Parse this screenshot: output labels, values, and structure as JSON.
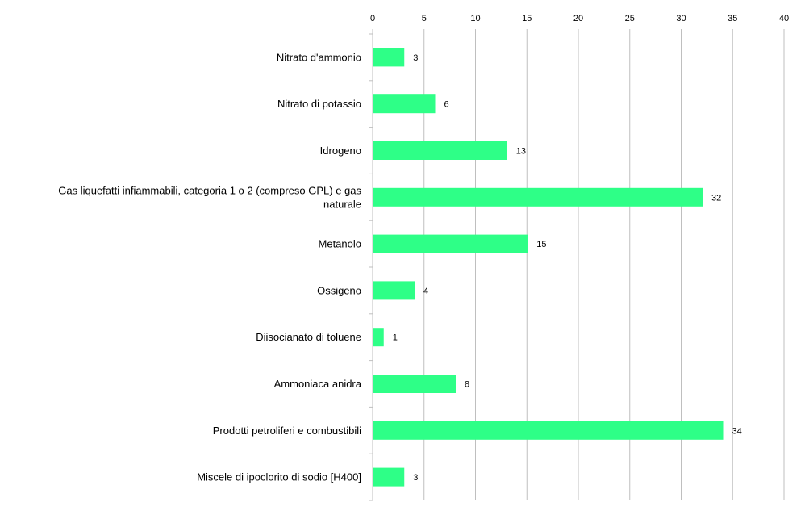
{
  "chart_data": {
    "type": "bar",
    "orientation": "horizontal",
    "title": "",
    "xlabel": "",
    "ylabel": "",
    "xlim": [
      0,
      40
    ],
    "xticks": [
      0,
      5,
      10,
      15,
      20,
      25,
      30,
      35,
      40
    ],
    "x_axis_position": "top",
    "grid": "vertical",
    "legend": "none",
    "bar_color": "#2EFF87",
    "categories": [
      [
        "Nitrato d'ammonio"
      ],
      [
        "Nitrato di potassio"
      ],
      [
        "Idrogeno"
      ],
      [
        "Gas liquefatti infiammabili, categoria 1 o 2 (compreso GPL) e gas",
        "naturale"
      ],
      [
        "Metanolo"
      ],
      [
        "Ossigeno"
      ],
      [
        "Diisocianato di toluene"
      ],
      [
        "Ammoniaca anidra"
      ],
      [
        "Prodotti petroliferi e combustibili"
      ],
      [
        "Miscele di ipoclorito di sodio [H400]"
      ]
    ],
    "values": [
      3,
      6,
      13,
      32,
      15,
      4,
      1,
      8,
      34,
      3
    ]
  }
}
